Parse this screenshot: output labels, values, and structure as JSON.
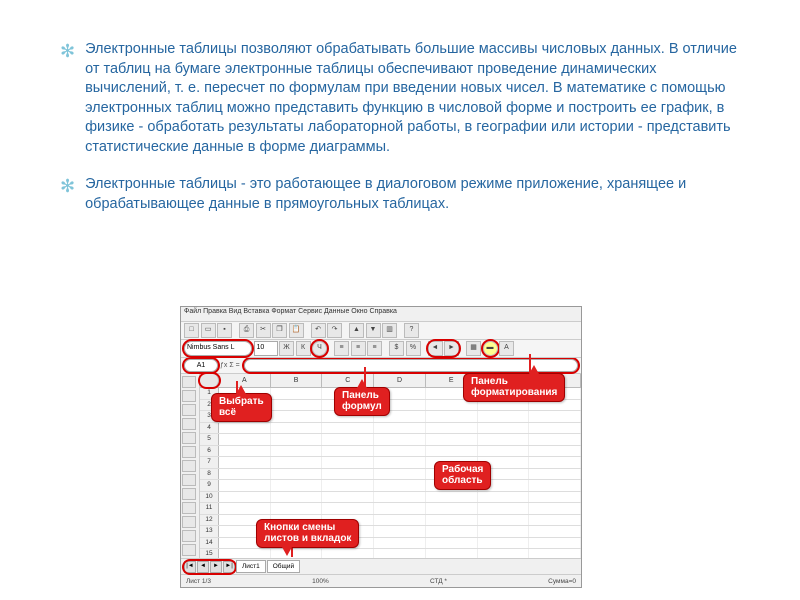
{
  "paragraphs": {
    "p1": "Электронные таблицы позволяют обрабатывать большие массивы числовых данных. В отличие от таблиц на бумаге электронные таблицы обеспечивают проведение динамических вычислений, т. е. пересчет по формулам при введении новых чисел. В математике с помощью электронных таблиц можно представить функцию в числовой форме и построить ее график, в физике - обработать результаты лабораторной работы, в географии или истории - представить статистические данные в форме диаграммы.",
    "p2": "Электронные таблицы - это работающее в диалоговом режиме приложение, хранящее и обрабатывающее данные в прямоугольных таблицах."
  },
  "screenshot": {
    "menubar": "Файл  Правка  Вид  Вставка  Формат  Сервис  Данные  Окно  Справка",
    "font_name": "Nimbus Sans L",
    "font_size": "10",
    "bold": "Ж",
    "italic": "К",
    "underline": "Ч",
    "cell_ref": "A1",
    "fx_label": "ƒx  Σ  =",
    "columns": [
      "A",
      "B",
      "C",
      "D",
      "E",
      "F",
      "G"
    ],
    "row_count": 15,
    "tab1": "Лист1",
    "tab2": "Общий",
    "status_left": "Лист 1/3",
    "status_mid": "100%",
    "status_r1": "СТД *",
    "status_r2": "Сумма=0"
  },
  "callouts": {
    "select_all": "Выбрать\nвсё",
    "formula_bar": "Панель\nформул",
    "format_bar": "Панель\nформатирования",
    "work_area": "Рабочая\nобласть",
    "sheet_tabs": "Кнопки смены\nлистов и вкладок"
  }
}
